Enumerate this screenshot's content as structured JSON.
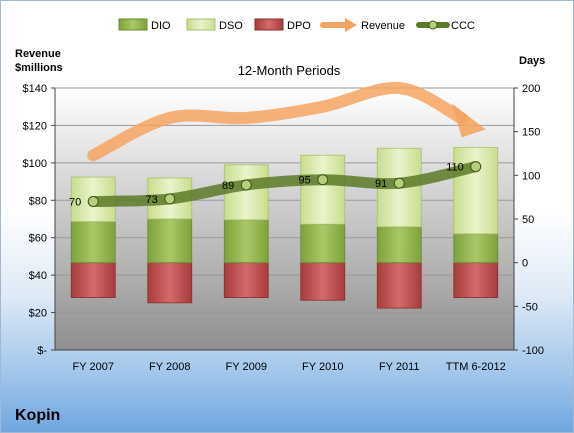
{
  "chart_data": {
    "type": "bar",
    "title": "12-Month Periods",
    "company": "Kopin",
    "categories": [
      "FY 2007",
      "FY 2008",
      "FY 2009",
      "FY 2010",
      "FY 2011",
      "TTM 6-2012"
    ],
    "legend": [
      "DIO",
      "DSO",
      "DPO",
      "Revenue",
      "CCC"
    ],
    "legend_position": "top",
    "left_axis": {
      "label": "Revenue\n$millions",
      "ticks": [
        "$-",
        "$20",
        "$40",
        "$60",
        "$80",
        "$100",
        "$120",
        "$140"
      ],
      "range": [
        0,
        140
      ]
    },
    "right_axis": {
      "label": "Days",
      "ticks": [
        "-100",
        "-50",
        "0",
        "50",
        "100",
        "150",
        "200"
      ],
      "range": [
        -100,
        200
      ]
    },
    "series": [
      {
        "name": "DIO",
        "axis": "right",
        "color": "#8db04a",
        "values": [
          47,
          50,
          49,
          44,
          41,
          33
        ]
      },
      {
        "name": "DSO",
        "axis": "right",
        "color": "#d7e9a8",
        "values": [
          51,
          47,
          63,
          79,
          90,
          99
        ]
      },
      {
        "name": "DPO",
        "axis": "right",
        "color": "#c04e4e",
        "values": [
          -40,
          -46,
          -40,
          -43,
          -52,
          -40
        ]
      },
      {
        "name": "Revenue",
        "axis": "left",
        "color": "#f4a460",
        "values": [
          104,
          124,
          124,
          130,
          140,
          120
        ]
      },
      {
        "name": "CCC",
        "axis": "right",
        "color": "#5b7a27",
        "values": [
          70,
          73,
          89,
          95,
          91,
          110
        ],
        "labels": [
          "70",
          "73",
          "89",
          "95",
          "91",
          "110"
        ]
      }
    ],
    "grid": true
  },
  "colors": {
    "plot_top": "#ffffff",
    "plot_bottom": "#8f8f8f",
    "frame_border": "#9fb8d6"
  }
}
